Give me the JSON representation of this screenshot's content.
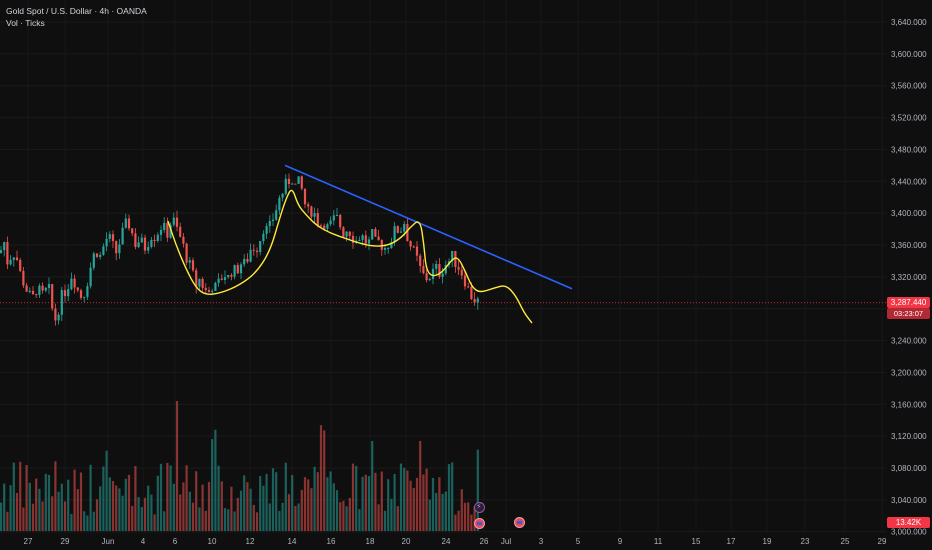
{
  "header": {
    "symbol_line": "Gold Spot / U.S. Dollar · 4h · OANDA",
    "indicator_line": "Vol · Ticks"
  },
  "price_axis": {
    "labels": [
      "3,640.000",
      "3,600.000",
      "3,560.000",
      "3,520.000",
      "3,480.000",
      "3,440.000",
      "3,400.000",
      "3,360.000",
      "3,320.000",
      "3,280.000",
      "3,240.000",
      "3,200.000",
      "3,160.000",
      "3,120.000",
      "3,080.000",
      "3,040.000",
      "3,000.000"
    ],
    "current_price": "3,287.440",
    "countdown": "03:23:07",
    "volume_value": "13.42K"
  },
  "time_axis": {
    "labels": [
      "27",
      "29",
      "Jun",
      "4",
      "6",
      "10",
      "12",
      "14",
      "16",
      "18",
      "20",
      "24",
      "26",
      "Jul",
      "3",
      "5",
      "9",
      "11",
      "15",
      "17",
      "19",
      "23",
      "25",
      "29"
    ]
  },
  "colors": {
    "bull": "#26a69a",
    "bear": "#ef5350",
    "trendline": "#2962ff",
    "projection": "#ffeb3b",
    "price_line": "#f23645",
    "background": "#0f0f0f"
  },
  "events": [
    "flash-icon",
    "flag-icon",
    "flag-icon"
  ],
  "chart_data": {
    "type": "candlestick",
    "timeframe": "4h",
    "y_axis": {
      "min": 3000,
      "max": 3640,
      "step": 40
    },
    "last_price": 3287.44,
    "ohlc_path": [
      [
        0,
        3350
      ],
      [
        4,
        3365
      ],
      [
        8,
        3335
      ],
      [
        12,
        3352
      ],
      [
        16,
        3348
      ],
      [
        20,
        3325
      ],
      [
        24,
        3312
      ],
      [
        28,
        3300
      ],
      [
        32,
        3290
      ],
      [
        36,
        3305
      ],
      [
        40,
        3300
      ],
      [
        44,
        3295
      ],
      [
        48,
        3310
      ],
      [
        52,
        3280
      ],
      [
        56,
        3265
      ],
      [
        60,
        3290
      ],
      [
        64,
        3300
      ],
      [
        68,
        3310
      ],
      [
        72,
        3325
      ],
      [
        76,
        3310
      ],
      [
        80,
        3295
      ],
      [
        84,
        3300
      ],
      [
        88,
        3318
      ],
      [
        92,
        3340
      ],
      [
        96,
        3355
      ],
      [
        100,
        3345
      ],
      [
        104,
        3360
      ],
      [
        108,
        3372
      ],
      [
        112,
        3360
      ],
      [
        116,
        3350
      ],
      [
        120,
        3365
      ],
      [
        124,
        3380
      ],
      [
        128,
        3390
      ],
      [
        132,
        3375
      ],
      [
        136,
        3360
      ],
      [
        140,
        3368
      ],
      [
        144,
        3355
      ],
      [
        148,
        3365
      ],
      [
        152,
        3375
      ],
      [
        156,
        3370
      ],
      [
        160,
        3385
      ],
      [
        164,
        3380
      ],
      [
        168,
        3375
      ],
      [
        172,
        3395
      ],
      [
        176,
        3382
      ],
      [
        180,
        3370
      ],
      [
        184,
        3355
      ],
      [
        188,
        3340
      ],
      [
        192,
        3325
      ],
      [
        196,
        3310
      ],
      [
        200,
        3318
      ],
      [
        204,
        3305
      ],
      [
        208,
        3298
      ],
      [
        212,
        3310
      ],
      [
        216,
        3305
      ],
      [
        220,
        3315
      ],
      [
        224,
        3325
      ],
      [
        228,
        3318
      ],
      [
        232,
        3330
      ],
      [
        236,
        3325
      ],
      [
        240,
        3338
      ],
      [
        244,
        3335
      ],
      [
        248,
        3345
      ],
      [
        252,
        3360
      ],
      [
        256,
        3355
      ],
      [
        260,
        3368
      ],
      [
        264,
        3385
      ],
      [
        268,
        3375
      ],
      [
        272,
        3390
      ],
      [
        276,
        3405
      ],
      [
        280,
        3420
      ],
      [
        284,
        3430
      ],
      [
        288,
        3440
      ],
      [
        292,
        3445
      ],
      [
        296,
        3432
      ],
      [
        300,
        3440
      ],
      [
        304,
        3415
      ],
      [
        308,
        3400
      ],
      [
        312,
        3405
      ],
      [
        316,
        3395
      ],
      [
        320,
        3385
      ],
      [
        324,
        3390
      ],
      [
        328,
        3380
      ],
      [
        332,
        3388
      ],
      [
        336,
        3395
      ],
      [
        340,
        3385
      ],
      [
        344,
        3375
      ],
      [
        348,
        3382
      ],
      [
        352,
        3372
      ],
      [
        356,
        3365
      ],
      [
        360,
        3372
      ],
      [
        364,
        3368
      ],
      [
        368,
        3360
      ],
      [
        372,
        3372
      ],
      [
        376,
        3360
      ],
      [
        380,
        3365
      ],
      [
        384,
        3355
      ],
      [
        388,
        3362
      ],
      [
        392,
        3370
      ],
      [
        396,
        3380
      ],
      [
        400,
        3378
      ],
      [
        404,
        3390
      ],
      [
        408,
        3368
      ],
      [
        412,
        3355
      ],
      [
        416,
        3345
      ],
      [
        420,
        3330
      ],
      [
        424,
        3320
      ],
      [
        428,
        3318
      ],
      [
        432,
        3325
      ],
      [
        436,
        3330
      ],
      [
        440,
        3325
      ],
      [
        444,
        3335
      ],
      [
        448,
        3338
      ],
      [
        452,
        3345
      ],
      [
        456,
        3338
      ],
      [
        460,
        3330
      ],
      [
        464,
        3320
      ],
      [
        468,
        3305
      ],
      [
        472,
        3295
      ],
      [
        476,
        3290
      ],
      [
        480,
        3287
      ]
    ],
    "trendline": {
      "from": [
        285,
        3460
      ],
      "to": [
        572,
        3305
      ]
    },
    "projection": [
      [
        168,
        3390
      ],
      [
        176,
        3360
      ],
      [
        186,
        3330
      ],
      [
        196,
        3306
      ],
      [
        206,
        3297
      ],
      [
        222,
        3300
      ],
      [
        240,
        3310
      ],
      [
        256,
        3325
      ],
      [
        270,
        3352
      ],
      [
        280,
        3395
      ],
      [
        286,
        3418
      ],
      [
        292,
        3433
      ],
      [
        298,
        3410
      ],
      [
        306,
        3398
      ],
      [
        316,
        3385
      ],
      [
        330,
        3375
      ],
      [
        346,
        3368
      ],
      [
        360,
        3362
      ],
      [
        374,
        3358
      ],
      [
        390,
        3360
      ],
      [
        402,
        3370
      ],
      [
        410,
        3382
      ],
      [
        420,
        3393
      ],
      [
        424,
        3360
      ],
      [
        426,
        3330
      ],
      [
        432,
        3320
      ],
      [
        442,
        3325
      ],
      [
        452,
        3342
      ],
      [
        458,
        3345
      ],
      [
        466,
        3325
      ],
      [
        472,
        3307
      ],
      [
        480,
        3300
      ],
      [
        494,
        3306
      ],
      [
        506,
        3310
      ],
      [
        516,
        3296
      ],
      [
        524,
        3275
      ],
      [
        532,
        3262
      ]
    ],
    "volume": {
      "ylim": [
        0,
        150000
      ],
      "last": "13.42K"
    },
    "x_ticks": [
      "27",
      "29",
      "Jun",
      "4",
      "6",
      "10",
      "12",
      "14",
      "16",
      "18",
      "20",
      "24",
      "26",
      "Jul",
      "3",
      "5",
      "9",
      "11",
      "15",
      "17",
      "19",
      "23",
      "25",
      "29"
    ]
  }
}
